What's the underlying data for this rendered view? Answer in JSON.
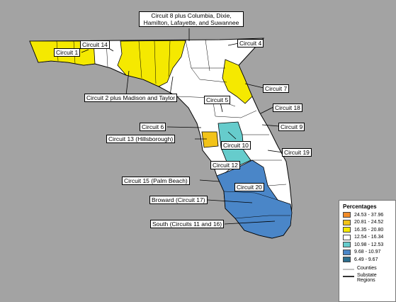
{
  "legend": {
    "title": "Percentages",
    "ranges": [
      {
        "label": "24.53 - 37.96",
        "color": "#f28c28"
      },
      {
        "label": "20.81 - 24.52",
        "color": "#f2c318"
      },
      {
        "label": "16.35 - 20.80",
        "color": "#f5e900"
      },
      {
        "label": "12.54 - 16.34",
        "color": "#ffffff"
      },
      {
        "label": "10.98 - 12.53",
        "color": "#66cccc"
      },
      {
        "label": "9.68 - 10.97",
        "color": "#4a86c8"
      },
      {
        "label": "6.49 - 9.67",
        "color": "#2c6e8e"
      }
    ],
    "counties_label": "Counties",
    "regions_label": "Substate Regions"
  },
  "labels": {
    "c8": "Circuit 8 plus Columbia, Dixie, Hamilton, Lafayette, and Suwannee",
    "c1": "Circuit 1",
    "c14": "Circuit 14",
    "c4": "Circuit 4",
    "c2": "Circuit 2 plus Madison and Taylor",
    "c7": "Circuit 7",
    "c5": "Circuit 5",
    "c18": "Circuit 18",
    "c6": "Circuit 6",
    "c9": "Circuit 9",
    "c13": "Circuit 13 (Hillsborough)",
    "c10": "Circuit 10",
    "c19": "Circuit 19",
    "c12": "Circuit 12",
    "c15": "Circuit 15 (Palm Beach)",
    "c20": "Circuit 20",
    "c17": "Broward (Circuit 17)",
    "c11": "South (Circuits 11 and 16)"
  },
  "colors": {
    "background": "#a3a3a3",
    "yellow": "#f5e900",
    "gold": "#f2c318",
    "white": "#ffffff",
    "teal": "#66cccc",
    "blue": "#4a86c8"
  }
}
